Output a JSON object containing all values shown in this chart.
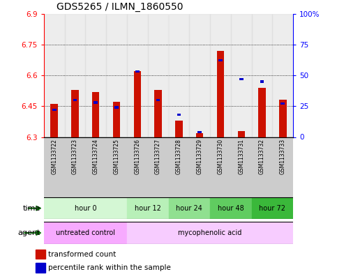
{
  "title": "GDS5265 / ILMN_1860550",
  "samples": [
    "GSM1133722",
    "GSM1133723",
    "GSM1133724",
    "GSM1133725",
    "GSM1133726",
    "GSM1133727",
    "GSM1133728",
    "GSM1133729",
    "GSM1133730",
    "GSM1133731",
    "GSM1133732",
    "GSM1133733"
  ],
  "red_values": [
    6.46,
    6.53,
    6.52,
    6.47,
    6.62,
    6.53,
    6.38,
    6.32,
    6.72,
    6.33,
    6.54,
    6.48
  ],
  "blue_pct": [
    22,
    30,
    28,
    24,
    53,
    30,
    18,
    4,
    62,
    47,
    45,
    27
  ],
  "y_min": 6.3,
  "y_max": 6.9,
  "y_ticks": [
    6.3,
    6.45,
    6.6,
    6.75,
    6.9
  ],
  "y_tick_labels": [
    "6.3",
    "6.45",
    "6.6",
    "6.75",
    "6.9"
  ],
  "right_y_ticks": [
    0,
    25,
    50,
    75,
    100
  ],
  "right_y_tick_labels": [
    "0",
    "25",
    "50",
    "75",
    "100%"
  ],
  "time_groups": [
    {
      "label": "hour 0",
      "start": 0,
      "end": 4,
      "color": "#d4f7d4"
    },
    {
      "label": "hour 12",
      "start": 4,
      "end": 6,
      "color": "#b8f0b8"
    },
    {
      "label": "hour 24",
      "start": 6,
      "end": 8,
      "color": "#90e090"
    },
    {
      "label": "hour 48",
      "start": 8,
      "end": 10,
      "color": "#60cc60"
    },
    {
      "label": "hour 72",
      "start": 10,
      "end": 12,
      "color": "#3ab83a"
    }
  ],
  "agent_groups": [
    {
      "label": "untreated control",
      "start": 0,
      "end": 4,
      "color": "#f7aaff"
    },
    {
      "label": "mycophenolic acid",
      "start": 4,
      "end": 12,
      "color": "#f7ccff"
    }
  ],
  "red_color": "#cc1100",
  "blue_color": "#0000cc",
  "sample_bg": "#cccccc",
  "legend_red": "transformed count",
  "legend_blue": "percentile rank within the sample"
}
